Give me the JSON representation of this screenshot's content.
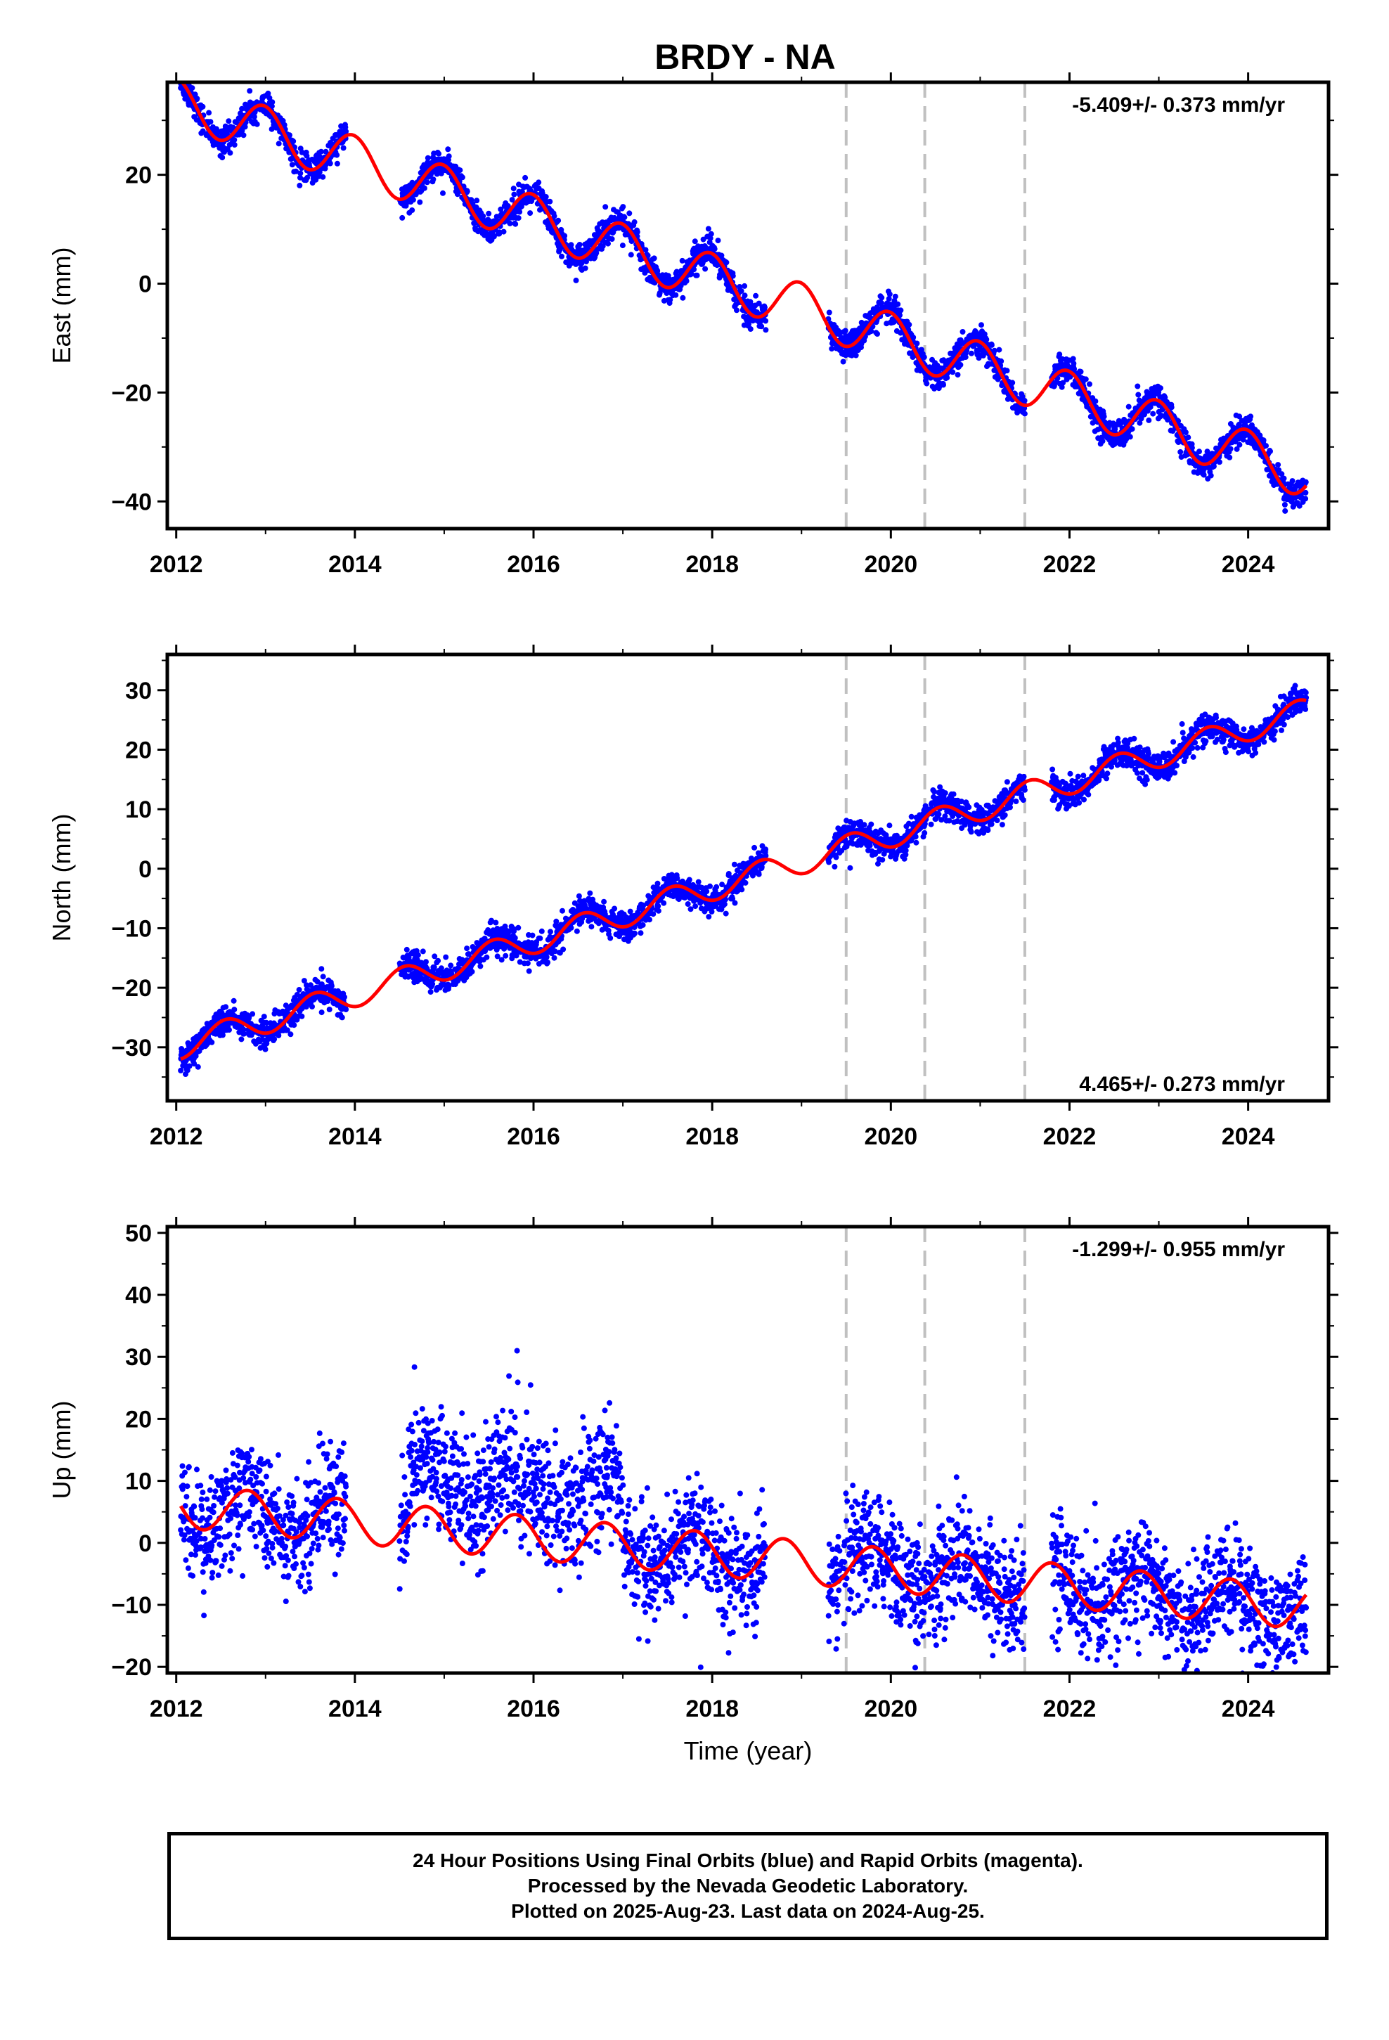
{
  "title": "BRDY - NA",
  "xlabel": "Time (year)",
  "footer": {
    "line1": "24 Hour Positions Using Final Orbits (blue) and Rapid Orbits (magenta).",
    "line2": "Processed by the Nevada Geodetic Laboratory.",
    "line3": "Plotted on 2025-Aug-23. Last data on 2024-Aug-25."
  },
  "colors": {
    "points": "#0000ff",
    "model": "#ff0000",
    "events": "#c0c0c0"
  },
  "chart_data": [
    {
      "type": "scatter",
      "ylabel": "East (mm)",
      "rate_text": "-5.409+/- 0.373 mm/yr",
      "rate_position": "top-right",
      "xlim": [
        2011.9,
        2024.9
      ],
      "ylim": [
        -45,
        37
      ],
      "xticks": [
        2012,
        2014,
        2016,
        2018,
        2020,
        2022,
        2024
      ],
      "yticks": [
        -40,
        -20,
        0,
        20
      ],
      "event_lines": [
        2019.5,
        2020.38,
        2021.5
      ],
      "data_segments": [
        [
          2012.05,
          2013.9
        ],
        [
          2014.5,
          2015.35
        ],
        [
          2015.35,
          2016.5
        ],
        [
          2016.5,
          2017.2
        ],
        [
          2017.2,
          2018.6
        ],
        [
          2019.3,
          2021.5
        ],
        [
          2021.8,
          2024.65
        ]
      ],
      "model": {
        "offset": 33.5,
        "rate": -5.409,
        "amplitude": 4.5,
        "peak_phase": 0.98
      },
      "noise_sd": 1.3
    },
    {
      "type": "scatter",
      "ylabel": "North (mm)",
      "rate_text": "4.465+/- 0.273 mm/yr",
      "rate_position": "bottom-right",
      "xlim": [
        2011.9,
        2024.9
      ],
      "ylim": [
        -39,
        36
      ],
      "xticks": [
        2012,
        2014,
        2016,
        2018,
        2020,
        2022,
        2024
      ],
      "yticks": [
        -30,
        -20,
        -10,
        0,
        10,
        20,
        30
      ],
      "event_lines": [
        2019.5,
        2020.38,
        2021.5
      ],
      "data_segments": [
        [
          2012.05,
          2013.9
        ],
        [
          2014.5,
          2015.35
        ],
        [
          2015.35,
          2016.5
        ],
        [
          2016.5,
          2017.2
        ],
        [
          2017.2,
          2018.6
        ],
        [
          2019.3,
          2021.5
        ],
        [
          2021.8,
          2024.65
        ]
      ],
      "model": {
        "offset": -30.0,
        "rate": 4.465,
        "amplitude": 2.2,
        "peak_phase": 0.55
      },
      "noise_sd": 1.2
    },
    {
      "type": "scatter",
      "ylabel": "Up (mm)",
      "rate_text": "-1.299+/- 0.955 mm/yr",
      "rate_position": "top-right",
      "xlim": [
        2011.9,
        2024.9
      ],
      "ylim": [
        -21,
        51
      ],
      "xticks": [
        2012,
        2014,
        2016,
        2018,
        2020,
        2022,
        2024
      ],
      "yticks": [
        -20,
        -10,
        0,
        10,
        20,
        30,
        40,
        50
      ],
      "event_lines": [
        2019.5,
        2020.38,
        2021.5
      ],
      "data_segments": [
        [
          2012.05,
          2013.9
        ],
        [
          2014.5,
          2015.35
        ],
        [
          2015.35,
          2016.5
        ],
        [
          2016.5,
          2017.2
        ],
        [
          2017.2,
          2018.6
        ],
        [
          2019.3,
          2021.5
        ],
        [
          2021.8,
          2024.65
        ]
      ],
      "model": {
        "offset": 6.0,
        "rate": -1.299,
        "amplitude": 3.5,
        "peak_phase": 0.8
      },
      "noise_sd": 4.5
    }
  ]
}
